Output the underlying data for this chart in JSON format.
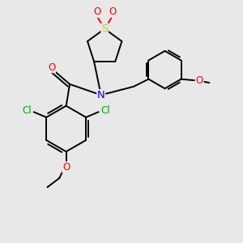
{
  "bg_color": "#e8e8e8",
  "bond_color": "#000000",
  "atom_colors": {
    "O": "#ff0000",
    "N": "#0000ff",
    "S": "#cccc00",
    "Cl": "#00aa00",
    "C": "#000000"
  },
  "bond_width": 1.4,
  "font_size": 8.5
}
